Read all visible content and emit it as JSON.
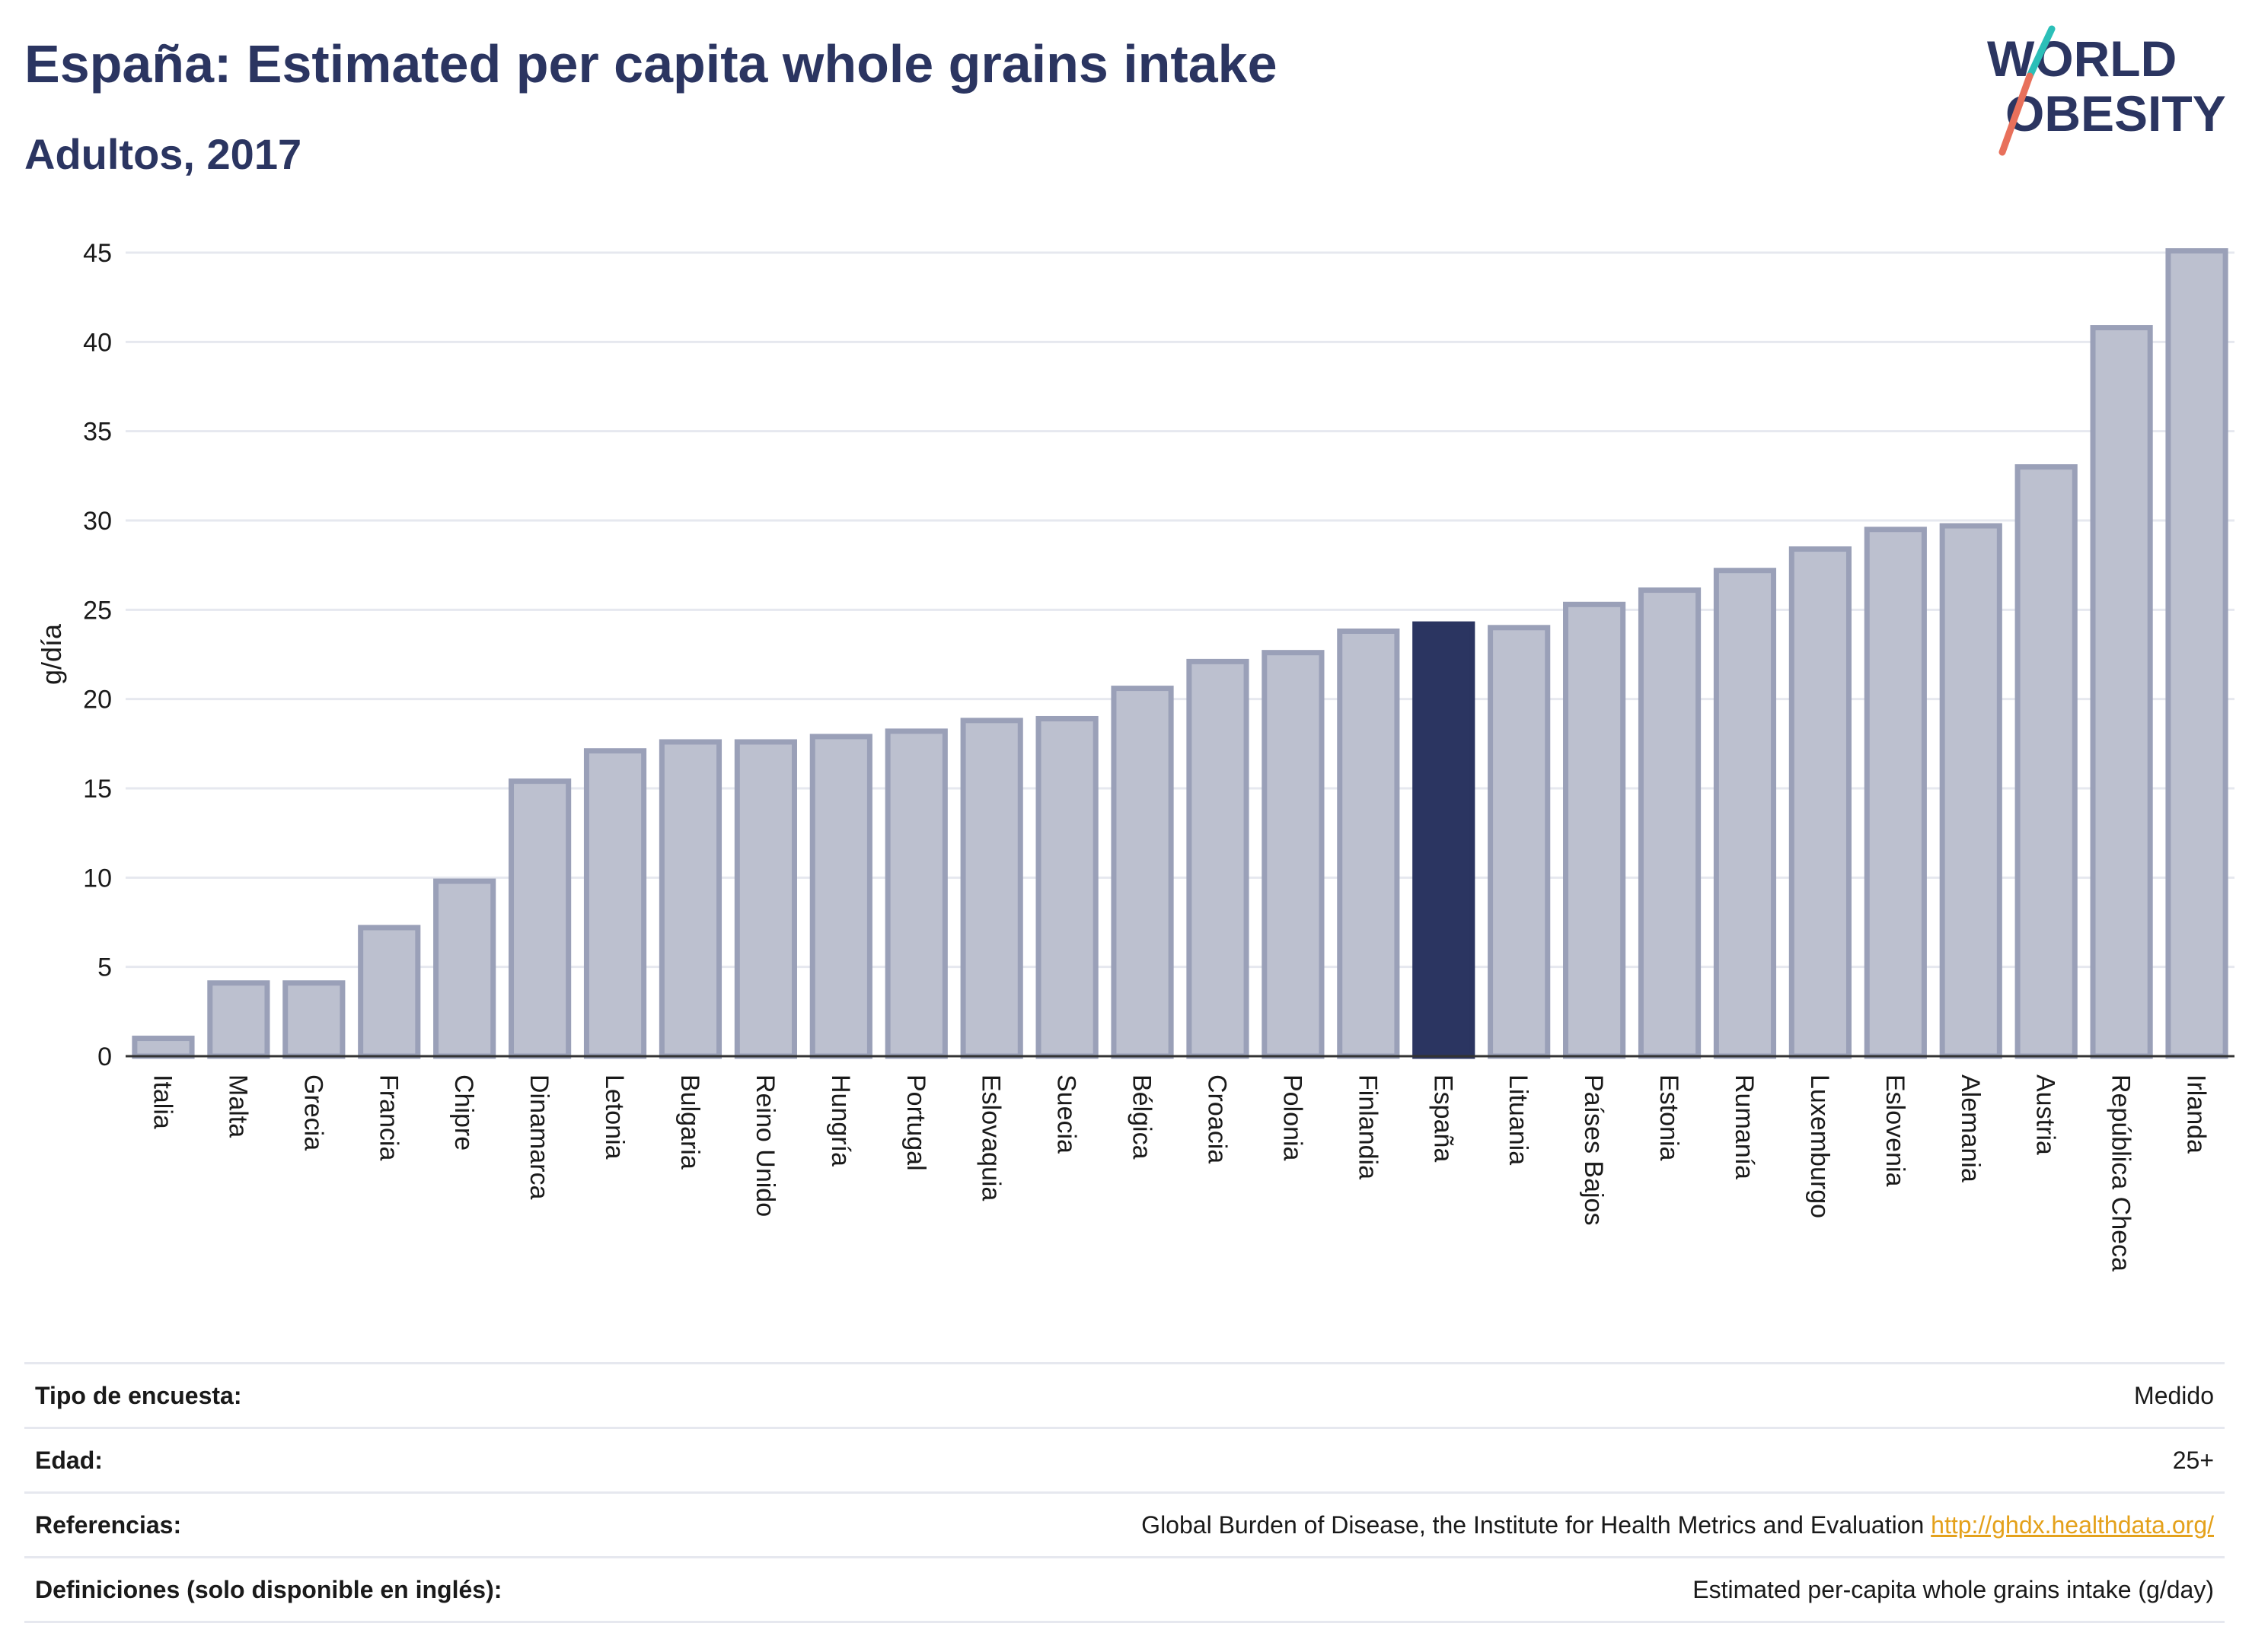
{
  "header": {
    "title": "España: Estimated per capita whole grains intake",
    "subtitle": "Adultos, 2017"
  },
  "logo": {
    "line1": "WORLD",
    "line2": "OBESITY"
  },
  "colors": {
    "bar": "#bcc0cf",
    "bar_border": "#9aa0b8",
    "highlight": "#2b3561",
    "title": "#2b3561",
    "link": "#e4a11b"
  },
  "chart_data": {
    "type": "bar",
    "categories": [
      "Italia",
      "Malta",
      "Grecia",
      "Francia",
      "Chipre",
      "Dinamarca",
      "Letonia",
      "Bulgaria",
      "Reino Unido",
      "Hungría",
      "Portugal",
      "Eslovaquia",
      "Suecia",
      "Bélgica",
      "Croacia",
      "Polonia",
      "Finlandia",
      "España",
      "Lituania",
      "Países Bajos",
      "Estonia",
      "Rumanía",
      "Luxemburgo",
      "Eslovenia",
      "Alemania",
      "Austria",
      "República Checa",
      "Irlanda"
    ],
    "values": [
      1.0,
      4.1,
      4.1,
      7.2,
      9.8,
      15.4,
      17.1,
      17.6,
      17.6,
      17.9,
      18.2,
      18.8,
      18.9,
      20.6,
      22.1,
      22.6,
      23.8,
      24.2,
      24.0,
      25.3,
      26.1,
      27.2,
      28.4,
      29.5,
      29.7,
      33.0,
      40.8,
      45.1
    ],
    "highlight": "España",
    "ylabel": "g/día",
    "ylim": [
      0,
      45
    ],
    "yticks": [
      0,
      5,
      10,
      15,
      20,
      25,
      30,
      35,
      40,
      45
    ],
    "grid": true
  },
  "meta": {
    "rows": [
      {
        "label": "Tipo de encuesta:",
        "value": "Medido"
      },
      {
        "label": "Edad:",
        "value": "25+"
      },
      {
        "label": "Referencias:",
        "value": "Global Burden of Disease, the Institute for Health Metrics and Evaluation",
        "link": "http://ghdx.healthdata.org/"
      },
      {
        "label": "Definiciones (solo disponible en inglés):",
        "value": "Estimated per-capita whole grains intake (g/day)"
      }
    ]
  }
}
